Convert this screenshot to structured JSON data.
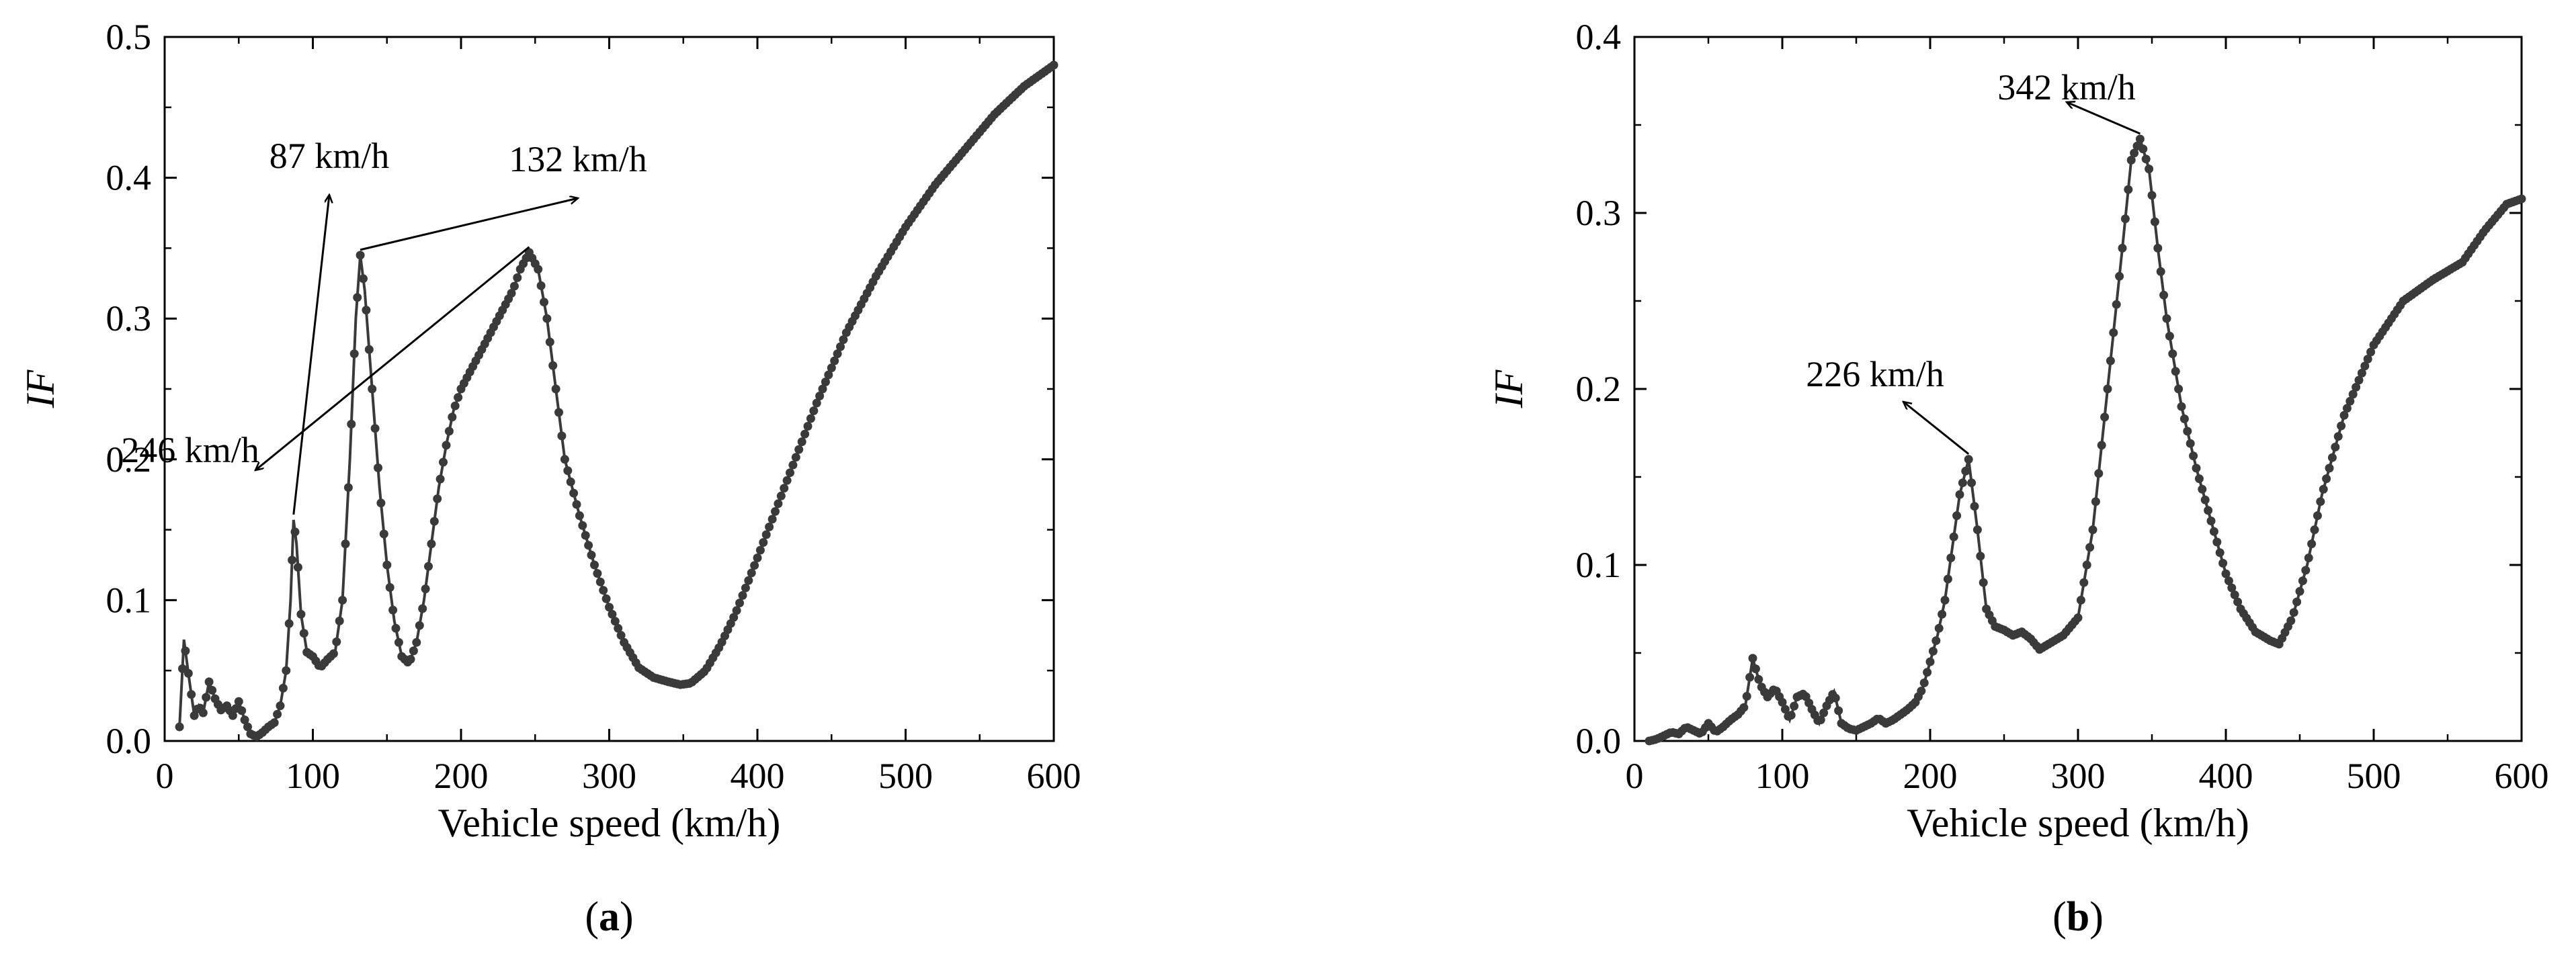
{
  "chart_data": [
    {
      "type": "scatter",
      "panel_label": "(a)",
      "panel_letter": "a",
      "xlabel": "Vehicle speed (km/h)",
      "ylabel": "IF",
      "xlim": [
        0,
        600
      ],
      "ylim": [
        0,
        0.5
      ],
      "xticks": [
        0,
        100,
        200,
        300,
        400,
        500,
        600
      ],
      "yticks": [
        0.0,
        0.1,
        0.2,
        0.3,
        0.4,
        0.5
      ],
      "ytick_labels": [
        "0.0",
        "0.1",
        "0.2",
        "0.3",
        "0.4",
        "0.5"
      ],
      "grid": false,
      "marker_color": "#3a3a3a",
      "annotations": [
        {
          "text": "87 km/h",
          "x": 87,
          "y": 0.157
        },
        {
          "text": "132 km/h",
          "x": 132,
          "y": 0.345
        },
        {
          "text": "246 km/h",
          "x": 246,
          "y": 0.347
        }
      ],
      "series": [
        {
          "x": [
            10,
            13,
            16,
            20,
            23,
            26,
            30,
            34,
            38,
            42,
            46,
            50,
            54,
            58,
            62,
            66,
            70,
            74,
            78,
            82,
            85,
            87,
            89,
            92,
            96,
            100,
            105,
            110,
            115,
            120,
            125,
            129,
            132,
            135,
            140,
            145,
            150,
            155,
            160,
            165,
            170,
            175,
            180,
            185,
            190,
            195,
            200,
            205,
            210,
            215,
            220,
            225,
            230,
            235,
            240,
            246,
            252,
            258,
            264,
            270,
            275,
            280,
            290,
            300,
            310,
            320,
            330,
            340,
            348,
            355,
            365,
            375,
            385,
            400,
            420,
            440,
            460,
            480,
            500,
            520,
            540,
            560,
            580,
            600
          ],
          "y": [
            0.01,
            0.072,
            0.048,
            0.018,
            0.025,
            0.02,
            0.042,
            0.03,
            0.022,
            0.025,
            0.018,
            0.028,
            0.015,
            0.005,
            0.003,
            0.006,
            0.01,
            0.013,
            0.025,
            0.05,
            0.1,
            0.157,
            0.14,
            0.09,
            0.063,
            0.06,
            0.052,
            0.058,
            0.063,
            0.1,
            0.2,
            0.3,
            0.345,
            0.32,
            0.25,
            0.18,
            0.125,
            0.085,
            0.06,
            0.055,
            0.07,
            0.1,
            0.14,
            0.18,
            0.21,
            0.235,
            0.25,
            0.26,
            0.27,
            0.28,
            0.29,
            0.3,
            0.31,
            0.32,
            0.335,
            0.347,
            0.335,
            0.3,
            0.25,
            0.2,
            0.18,
            0.16,
            0.125,
            0.095,
            0.07,
            0.052,
            0.045,
            0.042,
            0.04,
            0.041,
            0.05,
            0.068,
            0.09,
            0.13,
            0.185,
            0.24,
            0.29,
            0.33,
            0.365,
            0.395,
            0.42,
            0.445,
            0.465,
            0.48
          ]
        }
      ]
    },
    {
      "type": "scatter",
      "panel_label": "(b)",
      "panel_letter": "b",
      "xlabel": "Vehicle speed (km/h)",
      "ylabel": "IF",
      "xlim": [
        0,
        600
      ],
      "ylim": [
        0,
        0.4
      ],
      "xticks": [
        0,
        100,
        200,
        300,
        400,
        500,
        600
      ],
      "yticks": [
        0.0,
        0.1,
        0.2,
        0.3,
        0.4
      ],
      "ytick_labels": [
        "0.0",
        "0.1",
        "0.2",
        "0.3",
        "0.4"
      ],
      "grid": false,
      "marker_color": "#3a3a3a",
      "annotations": [
        {
          "text": "226 km/h",
          "x": 226,
          "y": 0.16
        },
        {
          "text": "342 km/h",
          "x": 342,
          "y": 0.342
        }
      ],
      "series": [
        {
          "x": [
            10,
            15,
            20,
            25,
            30,
            35,
            40,
            45,
            50,
            55,
            60,
            65,
            70,
            75,
            80,
            85,
            90,
            95,
            100,
            105,
            110,
            115,
            120,
            125,
            130,
            135,
            140,
            145,
            150,
            155,
            160,
            165,
            170,
            175,
            180,
            185,
            190,
            195,
            200,
            205,
            210,
            215,
            220,
            226,
            232,
            238,
            244,
            250,
            256,
            262,
            268,
            274,
            280,
            290,
            300,
            310,
            320,
            330,
            336,
            342,
            348,
            354,
            360,
            370,
            380,
            390,
            400,
            410,
            420,
            430,
            436,
            445,
            455,
            465,
            480,
            500,
            520,
            540,
            560,
            575,
            590,
            600
          ],
          "y": [
            0.0,
            0.001,
            0.003,
            0.005,
            0.004,
            0.008,
            0.006,
            0.004,
            0.01,
            0.005,
            0.008,
            0.012,
            0.015,
            0.02,
            0.047,
            0.032,
            0.025,
            0.03,
            0.022,
            0.012,
            0.025,
            0.027,
            0.018,
            0.01,
            0.02,
            0.028,
            0.01,
            0.007,
            0.006,
            0.008,
            0.01,
            0.013,
            0.01,
            0.012,
            0.015,
            0.018,
            0.022,
            0.03,
            0.045,
            0.06,
            0.08,
            0.11,
            0.14,
            0.16,
            0.12,
            0.075,
            0.065,
            0.063,
            0.06,
            0.062,
            0.058,
            0.052,
            0.055,
            0.06,
            0.07,
            0.12,
            0.2,
            0.28,
            0.33,
            0.342,
            0.325,
            0.28,
            0.24,
            0.19,
            0.155,
            0.125,
            0.095,
            0.075,
            0.062,
            0.057,
            0.055,
            0.07,
            0.1,
            0.14,
            0.185,
            0.225,
            0.25,
            0.262,
            0.272,
            0.29,
            0.305,
            0.308
          ]
        }
      ]
    }
  ]
}
